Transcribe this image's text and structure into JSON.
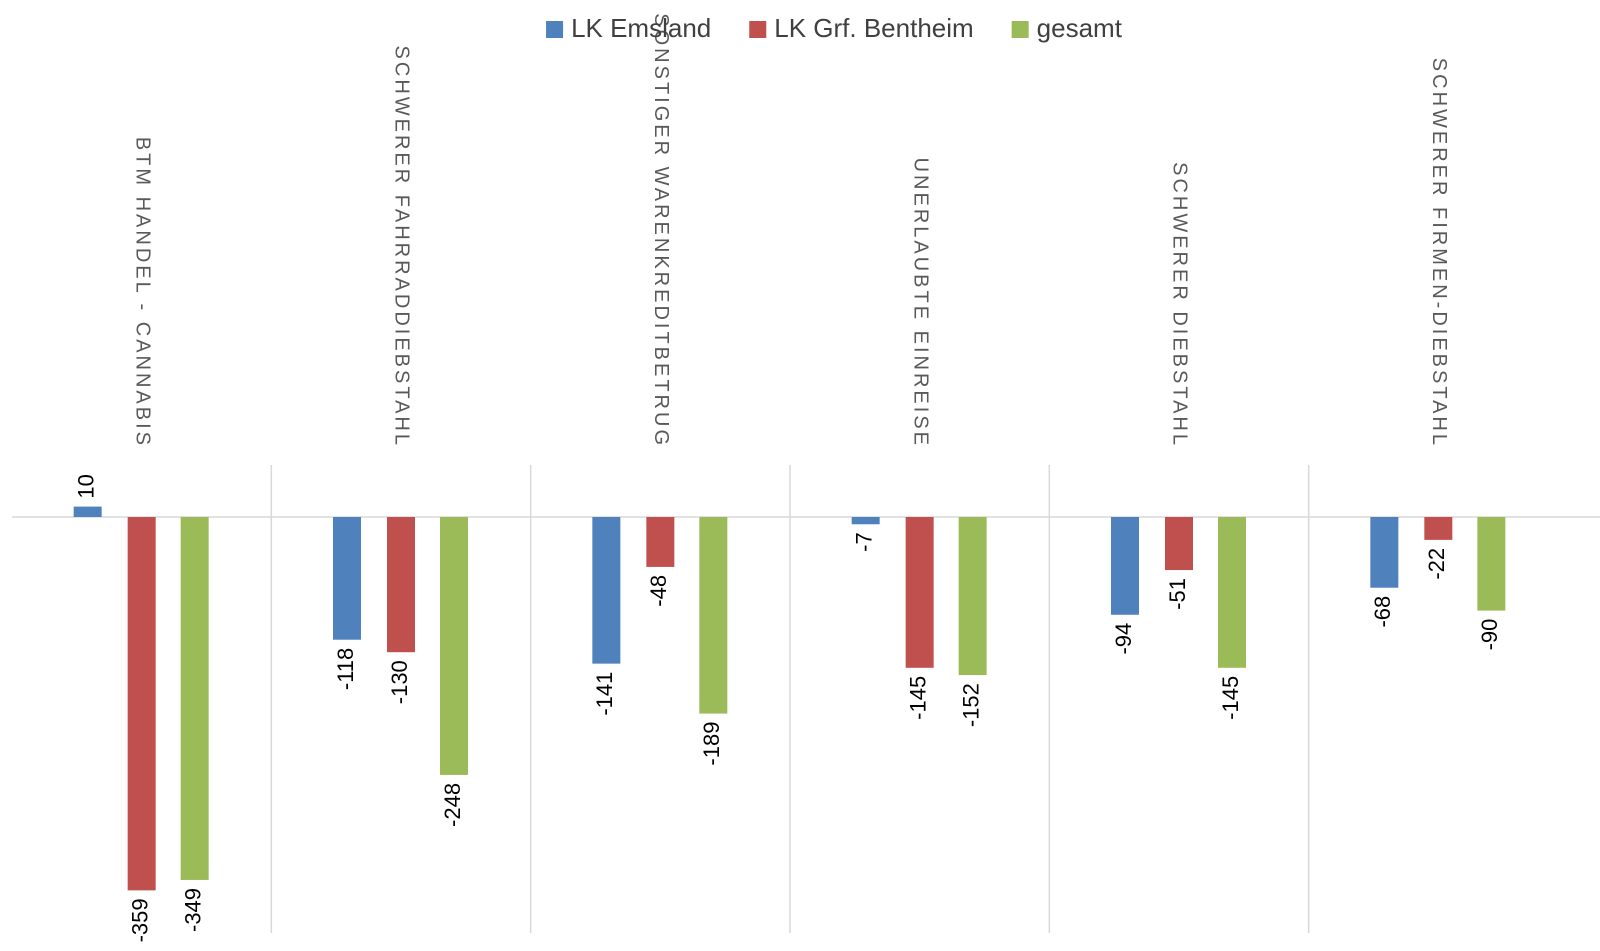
{
  "chart_data": {
    "type": "bar",
    "categories": [
      "BTM HANDEL - CANNABIS",
      "SCHWERER FAHRRADDIEBSTAHL",
      "SONSTIGER WARENKREDITBETRUG",
      "UNERLAUBTE EINREISE",
      "SCHWERER DIEBSTAHL",
      "SCHWERER FIRMEN-DIEBSTAHL"
    ],
    "series": [
      {
        "name": "LK Emsland",
        "color": "#4f81bd",
        "values": [
          10,
          -118,
          -141,
          -7,
          -94,
          -68
        ]
      },
      {
        "name": "LK Grf. Bentheim",
        "color": "#c0504d",
        "values": [
          -359,
          -130,
          -48,
          -145,
          -51,
          -22
        ]
      },
      {
        "name": "gesamt",
        "color": "#9bbb59",
        "values": [
          -349,
          -248,
          -189,
          -152,
          -145,
          -90
        ]
      }
    ],
    "ylim": [
      -400,
      50
    ],
    "legend": "top"
  }
}
